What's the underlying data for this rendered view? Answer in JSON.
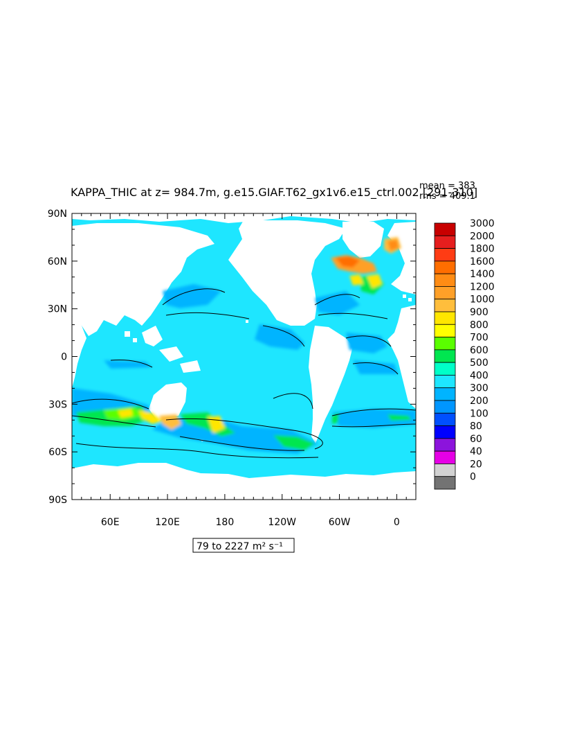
{
  "chart_data": {
    "type": "heatmap",
    "title": "KAPPA_THIC at z= 984.7m, g.e15.GIAF.T62_gx1v6.e15_ctrl.002 [291-310]",
    "stats": {
      "mean": "mean = 383",
      "rms": "rms = 409.1"
    },
    "range_label": "79 to 2227 m² s⁻¹",
    "x_ticks": [
      "60E",
      "120E",
      "180",
      "120W",
      "60W",
      "0"
    ],
    "y_ticks": [
      "90N",
      "60N",
      "30N",
      "0",
      "30S",
      "60S",
      "90S"
    ],
    "xlim": [
      20,
      380
    ],
    "ylim": [
      -90,
      90
    ],
    "colorbar": {
      "levels": [
        "3000",
        "2000",
        "1800",
        "1600",
        "1400",
        "1200",
        "1000",
        "900",
        "800",
        "700",
        "600",
        "500",
        "400",
        "300",
        "200",
        "100",
        "80",
        "60",
        "40",
        "20",
        "0"
      ],
      "colors": [
        "#c80000",
        "#e61e1e",
        "#ff3c14",
        "#ff6e00",
        "#ff8c14",
        "#ffa028",
        "#ffbe3c",
        "#ffe600",
        "#ffff00",
        "#5aff00",
        "#00e650",
        "#00ffc8",
        "#1ee6ff",
        "#00b4ff",
        "#0096ff",
        "#0050ff",
        "#0000ff",
        "#8c14dc",
        "#e600e6",
        "#d2d2d2",
        "#737373"
      ]
    }
  }
}
